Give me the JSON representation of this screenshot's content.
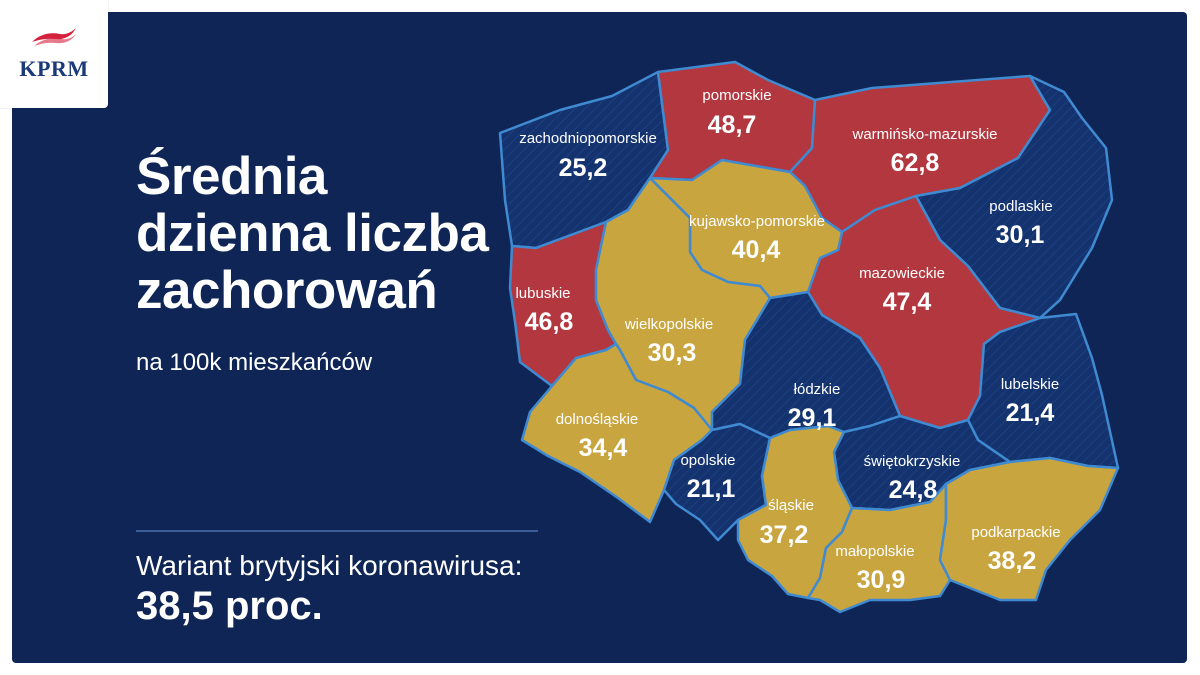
{
  "logo": {
    "text": "KPRM"
  },
  "headline": {
    "line1": "Średnia",
    "line2": "dzienna liczba",
    "line3": "zachorowań",
    "subtitle": "na 100k mieszkańców"
  },
  "variant": {
    "label": "Wariant brytyjski koronawirusa:",
    "value": "38,5 proc."
  },
  "colors": {
    "background": "#0e2556",
    "red": "#b2373f",
    "yellow": "#c9a53f",
    "blue": "#14336e",
    "border": "#3f8ad1"
  },
  "regions": [
    {
      "id": "zachodniopomorskie",
      "name": "zachodniopomorskie",
      "value": "25,2",
      "category": "blue"
    },
    {
      "id": "pomorskie",
      "name": "pomorskie",
      "value": "48,7",
      "category": "red"
    },
    {
      "id": "warminsko-mazurskie",
      "name": "warmińsko-mazurskie",
      "value": "62,8",
      "category": "red"
    },
    {
      "id": "podlaskie",
      "name": "podlaskie",
      "value": "30,1",
      "category": "blue"
    },
    {
      "id": "kujawsko-pomorskie",
      "name": "kujawsko-pomorskie",
      "value": "40,4",
      "category": "yellow"
    },
    {
      "id": "lubuskie",
      "name": "lubuskie",
      "value": "46,8",
      "category": "red"
    },
    {
      "id": "wielkopolskie",
      "name": "wielkopolskie",
      "value": "30,3",
      "category": "yellow"
    },
    {
      "id": "mazowieckie",
      "name": "mazowieckie",
      "value": "47,4",
      "category": "red"
    },
    {
      "id": "lodzkie",
      "name": "łódzkie",
      "value": "29,1",
      "category": "blue"
    },
    {
      "id": "lubelskie",
      "name": "lubelskie",
      "value": "21,4",
      "category": "blue"
    },
    {
      "id": "dolnoslaskie",
      "name": "dolnośląskie",
      "value": "34,4",
      "category": "yellow"
    },
    {
      "id": "opolskie",
      "name": "opolskie",
      "value": "21,1",
      "category": "blue"
    },
    {
      "id": "swietokrzyskie",
      "name": "świętokrzyskie",
      "value": "24,8",
      "category": "blue"
    },
    {
      "id": "slaskie",
      "name": "śląskie",
      "value": "37,2",
      "category": "yellow"
    },
    {
      "id": "malopolskie",
      "name": "małopolskie",
      "value": "30,9",
      "category": "yellow"
    },
    {
      "id": "podkarpackie",
      "name": "podkarpackie",
      "value": "38,2",
      "category": "yellow"
    }
  ]
}
